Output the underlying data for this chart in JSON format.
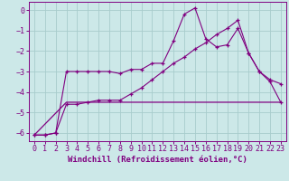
{
  "xlabel": "Windchill (Refroidissement éolien,°C)",
  "bg_color": "#cce8e8",
  "line_color": "#800080",
  "grid_color": "#a8cccc",
  "xlim": [
    -0.5,
    23.5
  ],
  "ylim": [
    -6.4,
    0.4
  ],
  "yticks": [
    0,
    -1,
    -2,
    -3,
    -4,
    -5,
    -6
  ],
  "xticks": [
    0,
    1,
    2,
    3,
    4,
    5,
    6,
    7,
    8,
    9,
    10,
    11,
    12,
    13,
    14,
    15,
    16,
    17,
    18,
    19,
    20,
    21,
    22,
    23
  ],
  "line1_x": [
    0,
    1,
    2,
    3,
    4,
    5,
    6,
    7,
    8,
    9,
    10,
    11,
    12,
    13,
    14,
    15,
    16,
    17,
    18,
    19,
    20,
    21,
    22,
    23
  ],
  "line1_y": [
    -6.1,
    -6.1,
    -6.0,
    -3.0,
    -3.0,
    -3.0,
    -3.0,
    -3.0,
    -3.1,
    -2.9,
    -2.9,
    -2.6,
    -2.6,
    -1.5,
    -0.2,
    0.1,
    -1.4,
    -1.8,
    -1.7,
    -0.9,
    -2.1,
    -3.0,
    -3.4,
    -3.6
  ],
  "line2_x": [
    0,
    1,
    2,
    3,
    4,
    5,
    6,
    7,
    8,
    9,
    10,
    11,
    12,
    13,
    14,
    15,
    16,
    17,
    18,
    19,
    20,
    21,
    22,
    23
  ],
  "line2_y": [
    -6.1,
    -6.1,
    -6.0,
    -4.6,
    -4.6,
    -4.5,
    -4.4,
    -4.4,
    -4.4,
    -4.1,
    -3.8,
    -3.4,
    -3.0,
    -2.6,
    -2.3,
    -1.9,
    -1.6,
    -1.2,
    -0.9,
    -0.5,
    -2.1,
    -3.0,
    -3.5,
    -4.5
  ],
  "line3_x": [
    0,
    3,
    23
  ],
  "line3_y": [
    -6.1,
    -4.5,
    -4.5
  ],
  "xlabel_fontsize": 6.5,
  "tick_fontsize": 6.0
}
